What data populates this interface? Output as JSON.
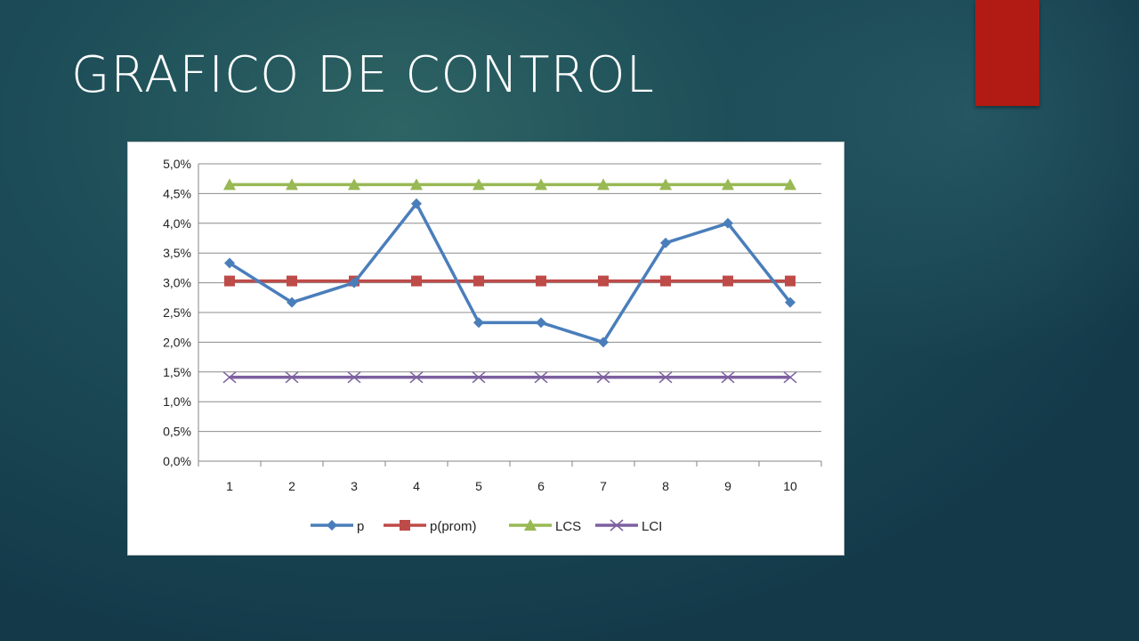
{
  "slide": {
    "title": "GRAFICO DE CONTROL",
    "accent_color": "#b11b14"
  },
  "chart_data": {
    "type": "line",
    "categories": [
      "1",
      "2",
      "3",
      "4",
      "5",
      "6",
      "7",
      "8",
      "9",
      "10"
    ],
    "ylim": [
      0,
      0.05
    ],
    "y_ticks": [
      {
        "v": 0.0,
        "label": "0,0%"
      },
      {
        "v": 0.005,
        "label": "0,5%"
      },
      {
        "v": 0.01,
        "label": "1,0%"
      },
      {
        "v": 0.015,
        "label": "1,5%"
      },
      {
        "v": 0.02,
        "label": "2,0%"
      },
      {
        "v": 0.025,
        "label": "2,5%"
      },
      {
        "v": 0.03,
        "label": "3,0%"
      },
      {
        "v": 0.035,
        "label": "3,5%"
      },
      {
        "v": 0.04,
        "label": "4,0%"
      },
      {
        "v": 0.045,
        "label": "4,5%"
      },
      {
        "v": 0.05,
        "label": "5,0%"
      }
    ],
    "grid": "horizontal",
    "legend_position": "bottom",
    "series": [
      {
        "name": "p",
        "color": "#4a7ebb",
        "marker": "diamond",
        "values": [
          0.0333,
          0.0267,
          0.03,
          0.0433,
          0.0233,
          0.0233,
          0.02,
          0.0367,
          0.04,
          0.0267
        ]
      },
      {
        "name": "p(prom)",
        "color": "#be4b48",
        "marker": "square",
        "values": [
          0.0303,
          0.0303,
          0.0303,
          0.0303,
          0.0303,
          0.0303,
          0.0303,
          0.0303,
          0.0303,
          0.0303
        ]
      },
      {
        "name": "LCS",
        "color": "#98b954",
        "marker": "triangle",
        "values": [
          0.0465,
          0.0465,
          0.0465,
          0.0465,
          0.0465,
          0.0465,
          0.0465,
          0.0465,
          0.0465,
          0.0465
        ]
      },
      {
        "name": "LCI",
        "color": "#7d60a0",
        "marker": "x",
        "values": [
          0.0141,
          0.0141,
          0.0141,
          0.0141,
          0.0141,
          0.0141,
          0.0141,
          0.0141,
          0.0141,
          0.0141
        ]
      }
    ]
  }
}
